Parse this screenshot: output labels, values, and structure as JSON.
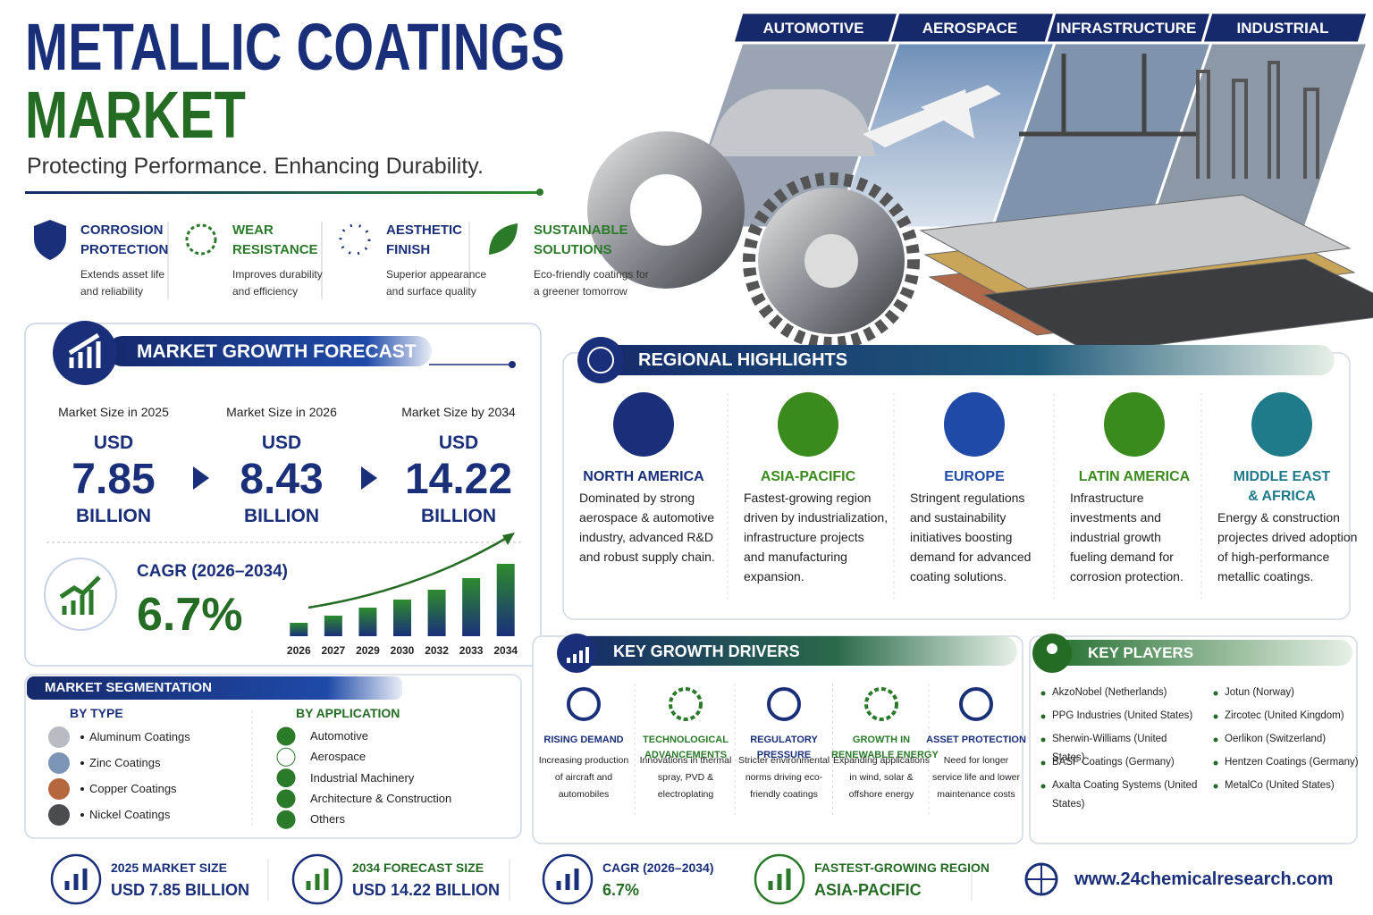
{
  "header": {
    "title_line1": "METALLIC COATINGS",
    "title_line2": "MARKET",
    "tagline": "Protecting Performance. Enhancing Durability."
  },
  "sectors": [
    "AUTOMOTIVE",
    "AEROSPACE",
    "INFRASTRUCTURE",
    "INDUSTRIAL"
  ],
  "features": [
    {
      "title_lines": [
        "CORROSION",
        "PROTECTION"
      ],
      "desc_lines": [
        "Extends asset life",
        "and reliability"
      ]
    },
    {
      "title_lines": [
        "WEAR",
        "RESISTANCE"
      ],
      "desc_lines": [
        "Improves durability",
        "and efficiency"
      ]
    },
    {
      "title_lines": [
        "AESTHETIC",
        "FINISH"
      ],
      "desc_lines": [
        "Superior appearance",
        "and surface quality"
      ]
    },
    {
      "title_lines": [
        "SUSTAINABLE",
        "SOLUTIONS"
      ],
      "desc_lines": [
        "Eco-friendly coatings for",
        "a greener tomorrow"
      ]
    }
  ],
  "forecast": {
    "heading": "MARKET GROWTH FORECAST",
    "sizes": [
      {
        "label": "Market Size in 2025",
        "currency": "USD",
        "value": 7.85,
        "unit": "BILLION"
      },
      {
        "label": "Market Size in 2026",
        "currency": "USD",
        "value": 8.43,
        "unit": "BILLION"
      },
      {
        "label": "Market Size by 2034",
        "currency": "USD",
        "value": 14.22,
        "unit": "BILLION"
      }
    ],
    "cagr_label": "CAGR (2026–2034)",
    "cagr_value": "6.7%"
  },
  "chart_data": {
    "type": "bar",
    "categories": [
      "2026",
      "2027",
      "2029",
      "2030",
      "2032",
      "2033",
      "2034"
    ],
    "values": [
      15,
      23,
      32,
      41,
      52,
      65,
      81
    ],
    "ylim": [
      0,
      100
    ],
    "color": "#2e8b2e"
  },
  "regions": {
    "heading": "REGIONAL HIGHLIGHTS",
    "items": [
      {
        "name_lines": [
          "NORTH AMERICA"
        ],
        "desc_lines": [
          "Dominated by strong",
          "aerospace & automotive",
          "industry, advanced R&D",
          "and robust supply chain."
        ]
      },
      {
        "name_lines": [
          "ASIA-PACIFIC"
        ],
        "desc_lines": [
          "Fastest-growing region",
          "driven by industrialization,",
          "infrastructure projects",
          "and manufacturing",
          "expansion."
        ]
      },
      {
        "name_lines": [
          "EUROPE"
        ],
        "desc_lines": [
          "Stringent regulations",
          "and sustainability",
          "initiatives boosting",
          "demand for advanced",
          "coating solutions."
        ]
      },
      {
        "name_lines": [
          "LATIN AMERICA"
        ],
        "desc_lines": [
          "Infrastructure",
          "investments and",
          "industrial growth",
          "fueling demand for",
          "corrosion protection."
        ]
      },
      {
        "name_lines": [
          "MIDDLE EAST",
          "& AFRICA"
        ],
        "desc_lines": [
          "Energy & construction",
          "projectes drived adoption",
          "of high-performance",
          "metallic coatings."
        ]
      }
    ]
  },
  "segmentation": {
    "heading": "MARKET SEGMENTATION",
    "by_type": {
      "heading": "BY TYPE",
      "items": [
        "Aluminum Coatings",
        "Zinc Coatings",
        "Copper Coatings",
        "Nickel Coatings"
      ]
    },
    "by_application": {
      "heading": "BY APPLICATION",
      "items": [
        "Automotive",
        "Aerospace",
        "Industrial Machinery",
        "Architecture & Construction",
        "Others"
      ]
    }
  },
  "drivers": {
    "heading": "KEY GROWTH DRIVERS",
    "items": [
      {
        "title_lines": [
          "RISING DEMAND"
        ],
        "desc_lines": [
          "Increasing production",
          "of aircraft and",
          "automobiles"
        ]
      },
      {
        "title_lines": [
          "TECHNOLOGICAL",
          "ADVANCEMENTS"
        ],
        "desc_lines": [
          "Innovations in thermal",
          "spray, PVD &",
          "electroplating"
        ]
      },
      {
        "title_lines": [
          "REGULATORY",
          "PRESSURE"
        ],
        "desc_lines": [
          "Stricter environmental",
          "norms driving eco-",
          "friendly coatings"
        ]
      },
      {
        "title_lines": [
          "GROWTH IN",
          "RENEWABLE ENERGY"
        ],
        "desc_lines": [
          "Expanding applications",
          "in wind, solar &",
          "offshore energy"
        ]
      },
      {
        "title_lines": [
          "ASSET PROTECTION"
        ],
        "desc_lines": [
          "Need for longer",
          "service life and lower",
          "maintenance costs"
        ]
      }
    ]
  },
  "players": {
    "heading": "KEY PLAYERS",
    "left": [
      "AkzoNobel (Netherlands)",
      "PPG Industries (United States)",
      "Sherwin-Williams (United States)",
      "BASF Coatings (Germany)",
      "Axalta Coating Systems (United States)"
    ],
    "right": [
      "Jotun (Norway)",
      "Zircotec (United Kingdom)",
      "Oerlikon (Switzerland)",
      "Hentzen Coatings (Germany)",
      "MetalCo (United States)"
    ]
  },
  "footer": {
    "items": [
      {
        "label": "2025 MARKET SIZE",
        "value": "USD 7.85 BILLION"
      },
      {
        "label": "2034 FORECAST SIZE",
        "value": "USD 14.22 BILLION"
      },
      {
        "label": "CAGR (2026–2034)",
        "value": "6.7%"
      },
      {
        "label": "FASTEST-GROWING REGION",
        "value": "ASIA-PACIFIC"
      }
    ],
    "website": "www.24chemicalresearch.com"
  }
}
